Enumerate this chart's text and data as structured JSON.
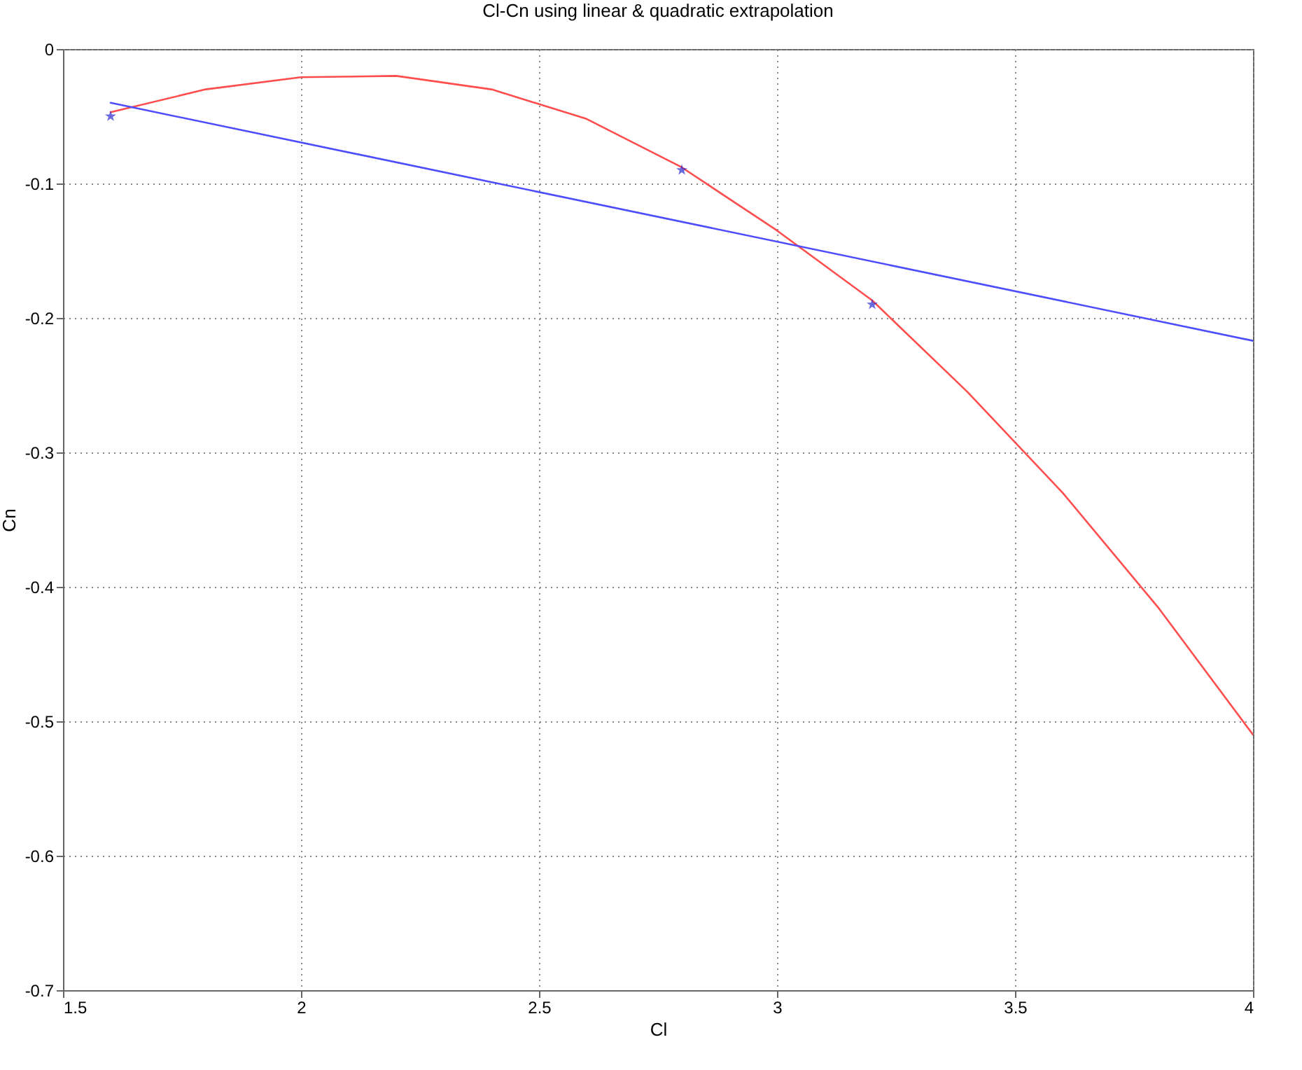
{
  "chart_data": {
    "type": "line",
    "title": "Cl-Cn using linear & quadratic extrapolation",
    "xlabel": "Cl",
    "ylabel": "Cn",
    "xlim": [
      1.5,
      4
    ],
    "xticks": [
      1.5,
      2,
      2.5,
      3,
      3.5,
      4
    ],
    "ylim": [
      -0.7,
      0
    ],
    "yticks": [
      -0.7,
      -0.6,
      -0.5,
      -0.4,
      -0.3,
      -0.2,
      -0.1,
      0
    ],
    "grid": true,
    "series": [
      {
        "color": "#ff4d4d",
        "line_style": "solid",
        "x": [
          1.6,
          1.8,
          2.0,
          2.2,
          2.4,
          2.6,
          2.8,
          3.0,
          3.2,
          3.4,
          3.6,
          3.8,
          4.0
        ],
        "values": [
          -0.047,
          -0.03,
          -0.021,
          -0.02,
          -0.03,
          -0.052,
          -0.088,
          -0.135,
          -0.187,
          -0.255,
          -0.33,
          -0.415,
          -0.51
        ]
      },
      {
        "color": "#4d4dff",
        "line_style": "solid",
        "x": [
          1.6,
          4.0
        ],
        "values": [
          -0.04,
          -0.217
        ]
      },
      {
        "type": "scatter",
        "color": "#2a2ad0",
        "marker": "star",
        "x": [
          1.6,
          2.8,
          3.2
        ],
        "values": [
          -0.05,
          -0.09,
          -0.19
        ]
      }
    ]
  }
}
